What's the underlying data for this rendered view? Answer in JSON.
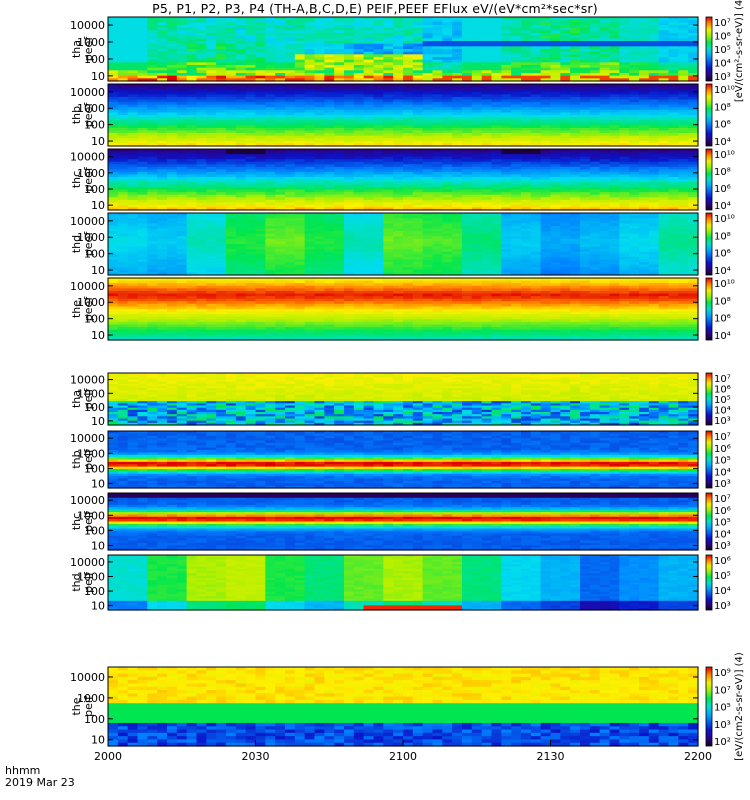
{
  "title": "P5, P1, P2, P3, P4 (TH-A,B,C,D,E) PEIF,PEEF EFlux eV/(eV*cm²*sec*sr)",
  "x_units_line1": "hhmm",
  "x_units_line2": "2019 Mar 23",
  "colors": {
    "background": "#ffffff",
    "axis": "#000000"
  },
  "chart_data": {
    "type": "heatmap",
    "description_of_axes": "Stacked energy-time spectrograms; x = UT time (hhmm), y = energy (eV, log scale)",
    "x_ticks": [
      "2000",
      "2030",
      "2100",
      "2130",
      "2200"
    ],
    "xlim": [
      "2000",
      "2200"
    ],
    "y_scale": "log",
    "y_ticks": [
      "10000",
      "1000",
      "100",
      "10"
    ],
    "ylim": [
      5,
      30000
    ],
    "grid": false,
    "panels": [
      {
        "probe": "tha",
        "product": "peef",
        "ylabel": [
          "tha",
          "peef"
        ],
        "cb_ticks": [
          "10⁷",
          "10⁶",
          "10⁵",
          "10⁴",
          "10³"
        ],
        "colorbar_label": "[eV/(cm²-s-sr-eV)] (4)",
        "pattern": "blue/cyan with red-yellow low-energy band and cyan high-energy fluctuations"
      },
      {
        "probe": "thb",
        "product": "peef",
        "ylabel": [
          "thb",
          "peef"
        ],
        "cb_ticks": [
          "10¹⁰",
          "10⁸",
          "10⁶",
          "10⁴"
        ],
        "pattern": "yellow low-energy band fading through green to deep blue at high energy"
      },
      {
        "probe": "thc",
        "product": "peef",
        "ylabel": [
          "thc",
          "peef"
        ],
        "cb_ticks": [
          "10¹⁰",
          "10⁸",
          "10⁶",
          "10⁴"
        ],
        "pattern": "yellow low-energy band, green/cyan middle, dark blue with black gaps at top"
      },
      {
        "probe": "thd",
        "product": "peef",
        "ylabel": [
          "thd",
          "peef"
        ],
        "cb_ticks": [
          "10¹⁰",
          "10⁸",
          "10⁶",
          "10⁴"
        ],
        "pattern": "vertical blocks alternating cyan, blue and green"
      },
      {
        "probe": "the",
        "product": "peef",
        "ylabel": [
          "the",
          "peef"
        ],
        "cb_ticks": [
          "10¹⁰",
          "10⁸",
          "10⁶",
          "10⁴"
        ],
        "pattern": "red/orange band at high energy, yellow to green toward low energy"
      },
      {
        "probe": "tha",
        "product": "peif",
        "ylabel": [
          "tha",
          "peif"
        ],
        "cb_ticks": [
          "10⁷",
          "10⁶",
          "10⁵",
          "10⁴",
          "10³"
        ],
        "pattern": "yellow/green at high energy, noisy blue speckle at low energy"
      },
      {
        "probe": "thb",
        "product": "peif",
        "ylabel": [
          "thb",
          "peif"
        ],
        "cb_ticks": [
          "10⁷",
          "10⁶",
          "10⁵",
          "10⁴",
          "10³"
        ],
        "pattern": "red band near 100-1000 eV, blue above and below"
      },
      {
        "probe": "thc",
        "product": "peif",
        "ylabel": [
          "thc",
          "peif"
        ],
        "cb_ticks": [
          "10⁷",
          "10⁶",
          "10⁵",
          "10⁴",
          "10³"
        ],
        "pattern": "red band near 1000 eV, blue above and below, dark edges"
      },
      {
        "probe": "thd",
        "product": "peif",
        "ylabel": [
          "thd",
          "peif"
        ],
        "cb_ticks": [
          "10⁶",
          "10⁵",
          "10⁴",
          "10³"
        ],
        "pattern": "green/yellow blocks, blue stripes, red patch at lowest energy mid-interval"
      },
      {
        "probe": "the",
        "product": "peif",
        "ylabel": [
          "the",
          "peif"
        ],
        "cb_ticks": [
          "10⁹",
          "10⁷",
          "10⁵",
          "10³",
          "10²"
        ],
        "colorbar_label": "[eV/(cm2-s-sr-eV)] (4)",
        "pattern": "yellow high energy, green mid, blue/purple low energy"
      }
    ]
  }
}
